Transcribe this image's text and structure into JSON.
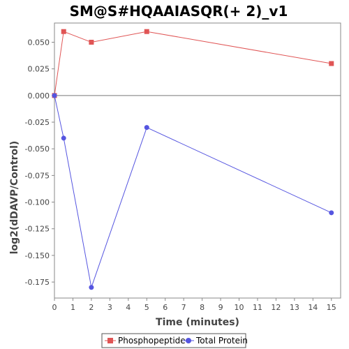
{
  "chart_data": {
    "type": "line",
    "title": "SM@S#HQAAIASQR(+ 2)_v1",
    "xlabel": "Time (minutes)",
    "ylabel": "log2(dDAVP/Control)",
    "xlim": [
      0,
      15.5
    ],
    "ylim": [
      -0.19,
      0.068
    ],
    "x_ticks": [
      0,
      1,
      2,
      3,
      4,
      5,
      6,
      7,
      8,
      9,
      10,
      11,
      12,
      13,
      14,
      15
    ],
    "y_ticks": [
      0.05,
      0.025,
      0.0,
      -0.025,
      -0.05,
      -0.075,
      -0.1,
      -0.125,
      -0.15,
      -0.175
    ],
    "y_tick_labels": [
      "0.050",
      "0.025",
      "0.000",
      "-0.025",
      "-0.050",
      "-0.075",
      "-0.100",
      "-0.125",
      "-0.150",
      "-0.175"
    ],
    "zero_line": true,
    "grid": false,
    "legend_position": "bottom",
    "series": [
      {
        "name": "Phosphopeptide",
        "color": "#e05555",
        "marker": "square",
        "x": [
          0,
          0.5,
          2,
          5,
          15
        ],
        "values": [
          0.0,
          0.06,
          0.05,
          0.06,
          0.03
        ]
      },
      {
        "name": "Total Protein",
        "color": "#5555e0",
        "marker": "circle",
        "x": [
          0,
          0.5,
          2,
          5,
          15
        ],
        "values": [
          0.0,
          -0.04,
          -0.18,
          -0.03,
          -0.11
        ]
      }
    ]
  }
}
